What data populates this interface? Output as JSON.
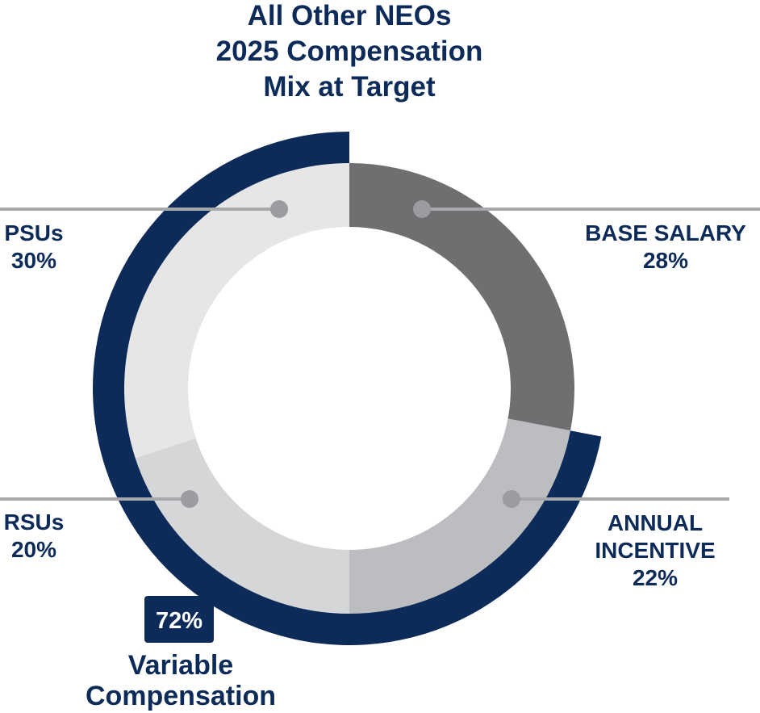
{
  "chart_data": {
    "type": "pie",
    "title_lines": [
      "All Other NEOs",
      "2025 Compensation",
      "Mix at Target"
    ],
    "slices": [
      {
        "label_lines": [
          "BASE SALARY"
        ],
        "value": 28,
        "value_label": "28%",
        "color": "#6f6f72"
      },
      {
        "label_lines": [
          "ANNUAL",
          "INCENTIVE"
        ],
        "value": 22,
        "value_label": "22%",
        "color": "#bcbdc0"
      },
      {
        "label_lines": [
          "RSUs"
        ],
        "value": 20,
        "value_label": "20%",
        "color": "#d5d6d8"
      },
      {
        "label_lines": [
          "PSUs"
        ],
        "value": 30,
        "value_label": "30%",
        "color": "#e6e6e7"
      }
    ],
    "variable_compensation": {
      "value": 72,
      "value_label": "72%",
      "label_lines": [
        "Variable",
        "Compensation"
      ],
      "color": "#0d2b59"
    },
    "colors": {
      "text": "#0d2b59",
      "leader_line": "#a7a8ab",
      "leader_dot": "#9b9c9f",
      "badge_text": "#ffffff"
    }
  }
}
